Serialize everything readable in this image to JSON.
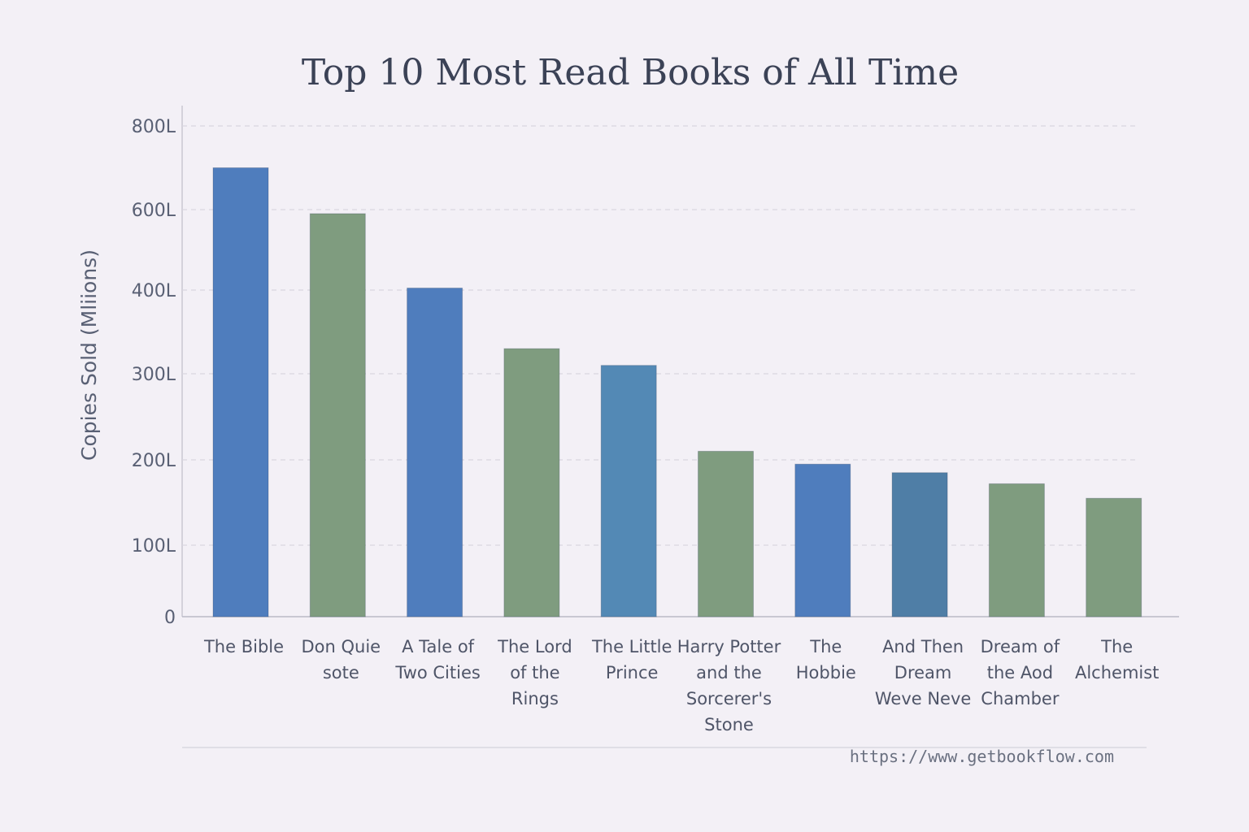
{
  "chart_data": {
    "type": "bar",
    "title": "Top 10 Most Read Books of All Time",
    "ylabel": "Copies Sold (Mliions)",
    "xlabel": "",
    "ylim": [
      0,
      800
    ],
    "grid": true,
    "yticks": [
      {
        "value": 0,
        "label": "0"
      },
      {
        "value": 100,
        "label": "100L"
      },
      {
        "value": 200,
        "label": "200L"
      },
      {
        "value": 300,
        "label": "300L"
      },
      {
        "value": 400,
        "label": "400L"
      },
      {
        "value": 600,
        "label": "600L"
      },
      {
        "value": 800,
        "label": "800L"
      }
    ],
    "categories": [
      [
        "The Bible"
      ],
      [
        "Don Quie",
        "sote"
      ],
      [
        "A Tale of",
        "Two Cities"
      ],
      [
        "The Lord",
        "of the",
        "Rings"
      ],
      [
        "The Little",
        "Prince"
      ],
      [
        "Harry Potter",
        "and the",
        "Sorcerer's",
        "Stone"
      ],
      [
        "The",
        "Hobbie"
      ],
      [
        "And Then",
        "Dream",
        "Weve Neve"
      ],
      [
        "Dream of",
        "the Aod",
        "Chamber"
      ],
      [
        "The",
        "Alchemist"
      ]
    ],
    "values": [
      700,
      590,
      405,
      330,
      310,
      210,
      195,
      185,
      172,
      155
    ],
    "colors": [
      "#4f7dbd",
      "#7f9c7f",
      "#4f7dbd",
      "#7f9c7f",
      "#5389b5",
      "#7f9c7f",
      "#4f7dbd",
      "#4f7ea6",
      "#7f9c7f",
      "#7f9c7f"
    ]
  },
  "source_url": "https://www.getbookflow.com"
}
